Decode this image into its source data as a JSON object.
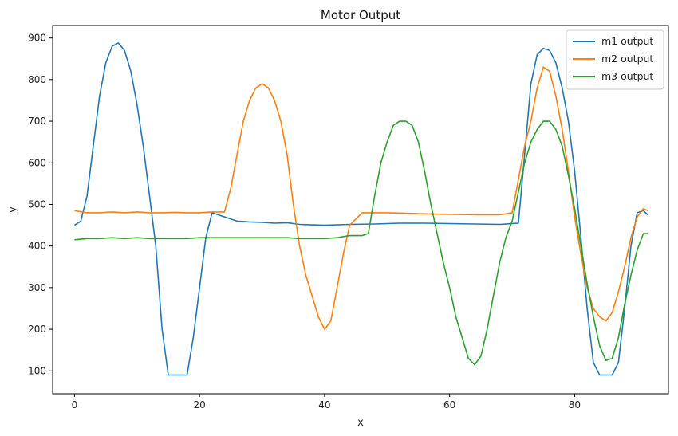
{
  "chart_data": {
    "type": "line",
    "title": "Motor Output",
    "xlabel": "x",
    "ylabel": "y",
    "xlim": [
      -3.5,
      95
    ],
    "ylim": [
      45,
      930
    ],
    "xticks": [
      0,
      20,
      40,
      60,
      80
    ],
    "yticks": [
      100,
      200,
      300,
      400,
      500,
      600,
      700,
      800,
      900
    ],
    "grid": false,
    "legend": "top-right",
    "series": [
      {
        "name": "m1 output",
        "color": "#1f77b4",
        "points": [
          [
            0,
            450
          ],
          [
            1,
            460
          ],
          [
            2,
            520
          ],
          [
            3,
            640
          ],
          [
            4,
            760
          ],
          [
            5,
            840
          ],
          [
            6,
            880
          ],
          [
            7,
            888
          ],
          [
            8,
            870
          ],
          [
            9,
            820
          ],
          [
            10,
            740
          ],
          [
            11,
            640
          ],
          [
            12,
            520
          ],
          [
            13,
            400
          ],
          [
            14,
            200
          ],
          [
            15,
            90
          ],
          [
            16,
            90
          ],
          [
            17,
            90
          ],
          [
            18,
            90
          ],
          [
            19,
            180
          ],
          [
            20,
            300
          ],
          [
            21,
            420
          ],
          [
            22,
            480
          ],
          [
            24,
            470
          ],
          [
            26,
            460
          ],
          [
            28,
            458
          ],
          [
            30,
            457
          ],
          [
            32,
            455
          ],
          [
            34,
            456
          ],
          [
            36,
            452
          ],
          [
            38,
            451
          ],
          [
            40,
            450
          ],
          [
            44,
            452
          ],
          [
            48,
            453
          ],
          [
            52,
            455
          ],
          [
            56,
            455
          ],
          [
            60,
            454
          ],
          [
            64,
            453
          ],
          [
            68,
            452
          ],
          [
            71,
            455
          ],
          [
            72,
            620
          ],
          [
            73,
            790
          ],
          [
            74,
            860
          ],
          [
            75,
            875
          ],
          [
            76,
            870
          ],
          [
            77,
            840
          ],
          [
            78,
            780
          ],
          [
            79,
            700
          ],
          [
            80,
            580
          ],
          [
            81,
            420
          ],
          [
            82,
            250
          ],
          [
            83,
            120
          ],
          [
            84,
            90
          ],
          [
            85,
            90
          ],
          [
            86,
            90
          ],
          [
            87,
            120
          ],
          [
            88,
            250
          ],
          [
            89,
            400
          ],
          [
            90,
            480
          ],
          [
            91,
            485
          ],
          [
            91.7,
            475
          ]
        ]
      },
      {
        "name": "m2 output",
        "color": "#ff7f0e",
        "points": [
          [
            0,
            485
          ],
          [
            2,
            480
          ],
          [
            4,
            480
          ],
          [
            6,
            482
          ],
          [
            8,
            480
          ],
          [
            10,
            482
          ],
          [
            12,
            480
          ],
          [
            14,
            480
          ],
          [
            16,
            481
          ],
          [
            18,
            480
          ],
          [
            20,
            480
          ],
          [
            22,
            482
          ],
          [
            24,
            482
          ],
          [
            25,
            540
          ],
          [
            26,
            620
          ],
          [
            27,
            700
          ],
          [
            28,
            750
          ],
          [
            29,
            780
          ],
          [
            30,
            790
          ],
          [
            31,
            780
          ],
          [
            32,
            750
          ],
          [
            33,
            700
          ],
          [
            34,
            620
          ],
          [
            35,
            500
          ],
          [
            36,
            400
          ],
          [
            37,
            330
          ],
          [
            38,
            280
          ],
          [
            39,
            230
          ],
          [
            40,
            200
          ],
          [
            41,
            220
          ],
          [
            42,
            300
          ],
          [
            43,
            380
          ],
          [
            44,
            450
          ],
          [
            46,
            480
          ],
          [
            50,
            480
          ],
          [
            55,
            478
          ],
          [
            60,
            476
          ],
          [
            65,
            475
          ],
          [
            68,
            475
          ],
          [
            70,
            480
          ],
          [
            71,
            560
          ],
          [
            72,
            640
          ],
          [
            73,
            700
          ],
          [
            74,
            780
          ],
          [
            75,
            830
          ],
          [
            76,
            820
          ],
          [
            77,
            760
          ],
          [
            78,
            680
          ],
          [
            79,
            580
          ],
          [
            80,
            470
          ],
          [
            81,
            380
          ],
          [
            82,
            300
          ],
          [
            83,
            250
          ],
          [
            84,
            230
          ],
          [
            85,
            220
          ],
          [
            86,
            240
          ],
          [
            87,
            290
          ],
          [
            88,
            350
          ],
          [
            89,
            420
          ],
          [
            90,
            470
          ],
          [
            91,
            490
          ],
          [
            91.7,
            485
          ]
        ]
      },
      {
        "name": "m3 output",
        "color": "#2ca02c",
        "points": [
          [
            0,
            415
          ],
          [
            2,
            418
          ],
          [
            4,
            418
          ],
          [
            6,
            420
          ],
          [
            8,
            418
          ],
          [
            10,
            420
          ],
          [
            12,
            418
          ],
          [
            14,
            418
          ],
          [
            16,
            418
          ],
          [
            18,
            418
          ],
          [
            20,
            420
          ],
          [
            22,
            420
          ],
          [
            24,
            420
          ],
          [
            26,
            420
          ],
          [
            28,
            420
          ],
          [
            30,
            420
          ],
          [
            32,
            420
          ],
          [
            34,
            420
          ],
          [
            36,
            418
          ],
          [
            38,
            418
          ],
          [
            40,
            418
          ],
          [
            42,
            420
          ],
          [
            44,
            425
          ],
          [
            46,
            425
          ],
          [
            47,
            430
          ],
          [
            48,
            520
          ],
          [
            49,
            600
          ],
          [
            50,
            650
          ],
          [
            51,
            690
          ],
          [
            52,
            700
          ],
          [
            53,
            700
          ],
          [
            54,
            690
          ],
          [
            55,
            650
          ],
          [
            56,
            580
          ],
          [
            57,
            500
          ],
          [
            58,
            430
          ],
          [
            59,
            360
          ],
          [
            60,
            300
          ],
          [
            61,
            230
          ],
          [
            62,
            180
          ],
          [
            63,
            130
          ],
          [
            64,
            115
          ],
          [
            65,
            135
          ],
          [
            66,
            200
          ],
          [
            67,
            280
          ],
          [
            68,
            360
          ],
          [
            69,
            420
          ],
          [
            70,
            460
          ],
          [
            71,
            530
          ],
          [
            72,
            600
          ],
          [
            73,
            650
          ],
          [
            74,
            680
          ],
          [
            75,
            700
          ],
          [
            76,
            700
          ],
          [
            77,
            680
          ],
          [
            78,
            640
          ],
          [
            79,
            570
          ],
          [
            80,
            490
          ],
          [
            81,
            400
          ],
          [
            82,
            310
          ],
          [
            83,
            230
          ],
          [
            84,
            160
          ],
          [
            85,
            125
          ],
          [
            86,
            130
          ],
          [
            87,
            180
          ],
          [
            88,
            260
          ],
          [
            89,
            330
          ],
          [
            90,
            390
          ],
          [
            91,
            430
          ],
          [
            91.7,
            430
          ]
        ]
      }
    ]
  }
}
